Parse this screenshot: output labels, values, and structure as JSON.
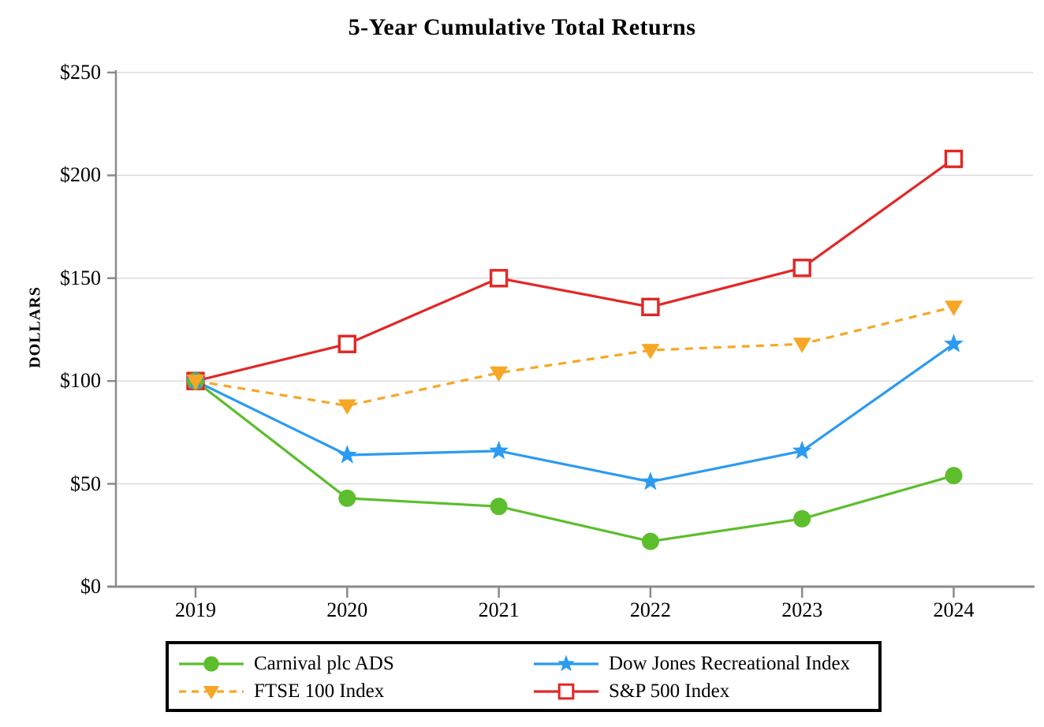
{
  "chart_data": {
    "type": "line",
    "title": "5-Year Cumulative Total Returns",
    "ylabel": "DOLLARS",
    "xlabel": "",
    "categories": [
      "2019",
      "2020",
      "2021",
      "2022",
      "2023",
      "2024"
    ],
    "series": [
      {
        "name": "Carnival plc ADS",
        "values": [
          100,
          43,
          39,
          22,
          33,
          54
        ],
        "color": "#5CBE2C",
        "marker": "circle",
        "line_style": "solid"
      },
      {
        "name": "Dow Jones Recreational Index",
        "values": [
          100,
          64,
          66,
          51,
          66,
          118
        ],
        "color": "#2B9BF2",
        "marker": "star",
        "line_style": "solid"
      },
      {
        "name": "FTSE 100 Index",
        "values": [
          100,
          88,
          104,
          115,
          118,
          136
        ],
        "color": "#F6A725",
        "marker": "triangle-down",
        "line_style": "dashed"
      },
      {
        "name": "S&P 500 Index",
        "values": [
          100,
          118,
          150,
          136,
          155,
          208
        ],
        "color": "#E22726",
        "marker": "square-open",
        "line_style": "solid"
      }
    ],
    "ylim": [
      0,
      250
    ],
    "ytick_values": [
      0,
      50,
      100,
      150,
      200,
      250
    ],
    "ytick_labels": [
      "$0",
      "$50",
      "$100",
      "$150",
      "$200",
      "$250"
    ],
    "grid": "horizontal",
    "legend_position": "bottom"
  },
  "colors": {
    "axis": "#8A8A8A",
    "gridline": "#DCDCDC",
    "text": "#000000",
    "background": "#FFFFFF",
    "legend_border": "#000000"
  }
}
